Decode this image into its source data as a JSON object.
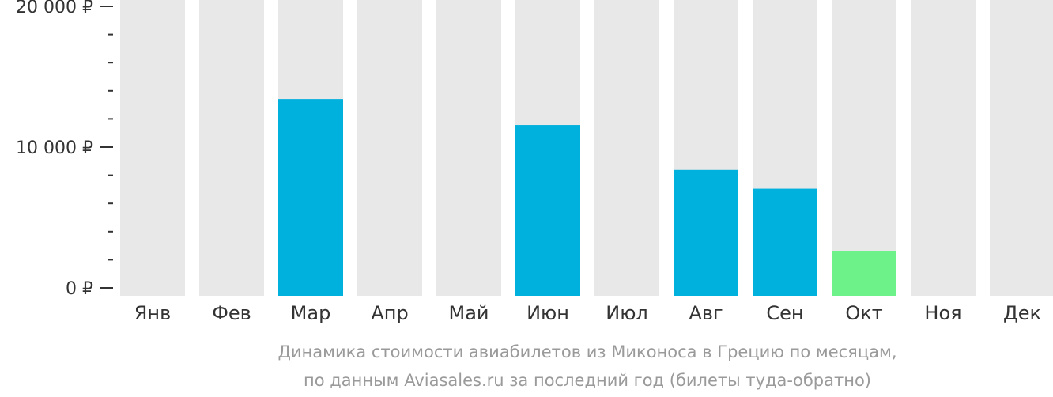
{
  "chart_data": {
    "type": "bar",
    "categories": [
      "Янв",
      "Фев",
      "Мар",
      "Апр",
      "Май",
      "Июн",
      "Июл",
      "Авг",
      "Сен",
      "Окт",
      "Ноя",
      "Дек"
    ],
    "values": [
      null,
      null,
      13600,
      0,
      null,
      11800,
      null,
      8700,
      7400,
      3100,
      null,
      null
    ],
    "highlight_category": "Окт",
    "ylim": [
      0,
      20000
    ],
    "yticks": [
      0,
      10000,
      20000
    ],
    "ytick_labels": [
      "0 ₽",
      "10 000 ₽",
      "20 000 ₽"
    ],
    "minor_tick_step": 2000,
    "caption_lines": [
      "Динамика стоимости авиабилетов из Миконоса в Грецию по месяцам,",
      "по данным Aviasales.ru за последний год (билеты туда-обратно)"
    ],
    "colors": {
      "bar": "#00b0dd",
      "highlight": "#6cf289",
      "background_bar": "#e8e8e8",
      "axis": "#333333",
      "caption": "#9a9a9a"
    }
  }
}
